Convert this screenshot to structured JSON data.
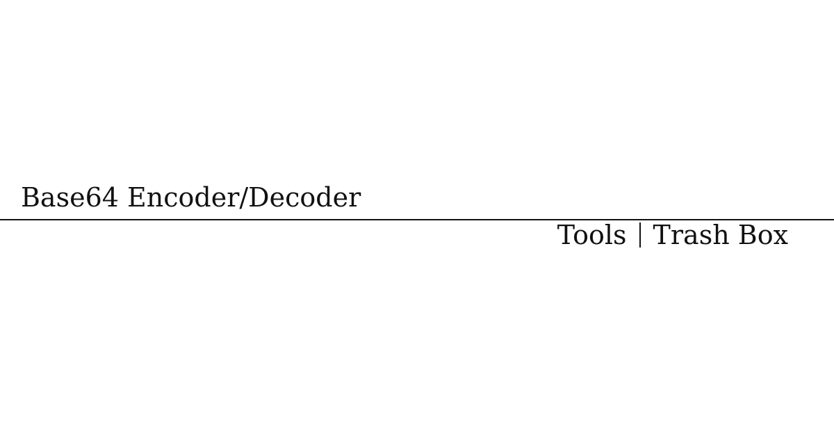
{
  "card": {
    "title": "Base64 Encoder/Decoder",
    "breadcrumb": {
      "section": "Tools",
      "site": "Trash Box"
    }
  }
}
